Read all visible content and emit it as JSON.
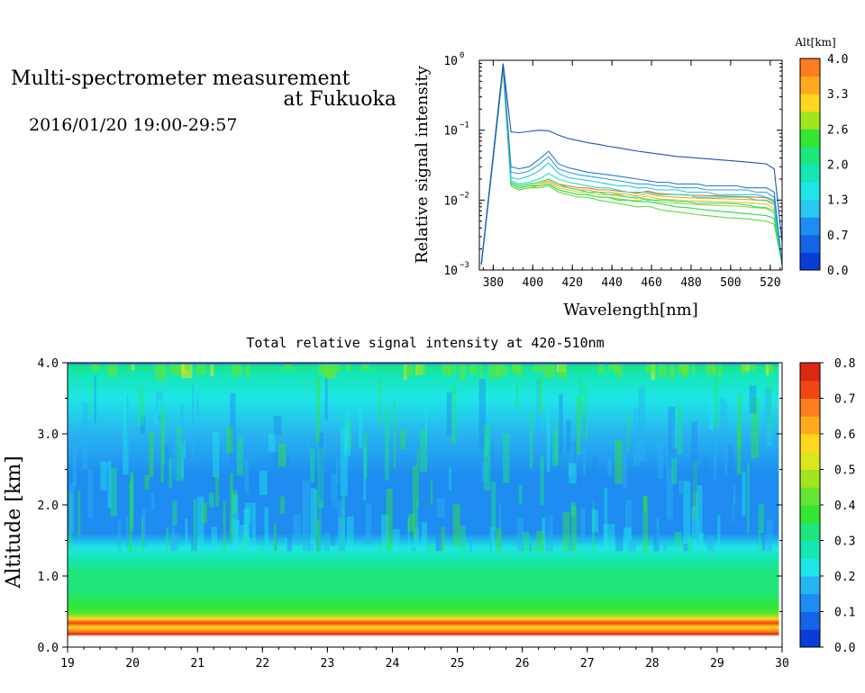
{
  "header": {
    "title_line1": "Multi-spectrometer measurement",
    "title_line2": "at Fukuoka",
    "datetime": "2016/01/20 19:00-29:57"
  },
  "colors": {
    "colorscale": [
      "#0a3cd7",
      "#1464e6",
      "#1e8cf0",
      "#28b4f0",
      "#1ee6e6",
      "#14e6b4",
      "#1ee67d",
      "#32e632",
      "#64e632",
      "#a0e61e",
      "#dce61e",
      "#ffd71e",
      "#ffaa1e",
      "#ff7d1e",
      "#f04614",
      "#dc2810"
    ],
    "spectrum_lines": [
      "#2050b8",
      "#2a78d0",
      "#30a0e0",
      "#28c8e0",
      "#1ee0c8",
      "#20e090",
      "#28d850",
      "#60d838",
      "#a8d820",
      "#e0c820",
      "#f8a020",
      "#f07020"
    ]
  },
  "chart_data": [
    {
      "type": "line",
      "subplot": "spectrum",
      "xlabel": "Wavelength[nm]",
      "ylabel": "Relative signal intensity",
      "xlim": [
        373,
        526
      ],
      "ylim": [
        0.001,
        1
      ],
      "yscale": "log",
      "xticks": [
        380,
        400,
        420,
        440,
        460,
        480,
        500,
        520
      ],
      "yticks": [
        {
          "label": "10",
          "exp": "0",
          "value": 1
        },
        {
          "label": "10",
          "exp": "−1",
          "value": 0.1
        },
        {
          "label": "10",
          "exp": "−2",
          "value": 0.01
        },
        {
          "label": "10",
          "exp": "−3",
          "value": 0.001
        }
      ],
      "x": [
        374,
        385,
        389,
        393,
        398,
        403,
        408,
        413,
        418,
        423,
        428,
        433,
        438,
        443,
        448,
        453,
        458,
        463,
        468,
        473,
        478,
        483,
        488,
        493,
        498,
        503,
        508,
        513,
        518,
        522,
        526
      ],
      "series": [
        {
          "values": [
            0.0012,
            0.9,
            0.095,
            0.092,
            0.096,
            0.1,
            0.098,
            0.085,
            0.076,
            0.071,
            0.066,
            0.063,
            0.059,
            0.056,
            0.053,
            0.05,
            0.048,
            0.046,
            0.044,
            0.042,
            0.041,
            0.04,
            0.039,
            0.038,
            0.037,
            0.036,
            0.035,
            0.034,
            0.033,
            0.028,
            0.0025
          ]
        },
        {
          "values": [
            0.0012,
            0.88,
            0.03,
            0.028,
            0.03,
            0.038,
            0.05,
            0.033,
            0.029,
            0.027,
            0.025,
            0.024,
            0.023,
            0.022,
            0.021,
            0.02,
            0.019,
            0.018,
            0.018,
            0.017,
            0.017,
            0.017,
            0.016,
            0.016,
            0.016,
            0.016,
            0.015,
            0.015,
            0.015,
            0.013,
            0.0012
          ]
        },
        {
          "values": [
            0.0012,
            0.86,
            0.025,
            0.024,
            0.026,
            0.032,
            0.042,
            0.028,
            0.025,
            0.023,
            0.022,
            0.021,
            0.02,
            0.019,
            0.018,
            0.017,
            0.017,
            0.016,
            0.016,
            0.015,
            0.015,
            0.015,
            0.014,
            0.014,
            0.014,
            0.014,
            0.014,
            0.013,
            0.013,
            0.011,
            0.0012
          ]
        },
        {
          "values": [
            0.0012,
            0.84,
            0.021,
            0.02,
            0.022,
            0.026,
            0.034,
            0.024,
            0.021,
            0.02,
            0.019,
            0.018,
            0.017,
            0.016,
            0.016,
            0.015,
            0.015,
            0.014,
            0.014,
            0.014,
            0.013,
            0.013,
            0.013,
            0.012,
            0.012,
            0.012,
            0.012,
            0.012,
            0.011,
            0.01,
            0.0012
          ]
        },
        {
          "values": [
            0.0012,
            0.82,
            0.019,
            0.017,
            0.018,
            0.02,
            0.024,
            0.02,
            0.018,
            0.017,
            0.016,
            0.015,
            0.015,
            0.014,
            0.013,
            0.013,
            0.013,
            0.012,
            0.012,
            0.012,
            0.012,
            0.011,
            0.011,
            0.011,
            0.011,
            0.011,
            0.011,
            0.01,
            0.01,
            0.009,
            0.0012
          ]
        },
        {
          "values": [
            0.0012,
            0.8,
            0.018,
            0.016,
            0.017,
            0.018,
            0.02,
            0.017,
            0.015,
            0.014,
            0.013,
            0.013,
            0.012,
            0.012,
            0.011,
            0.011,
            0.01,
            0.01,
            0.01,
            0.0095,
            0.0095,
            0.009,
            0.009,
            0.009,
            0.009,
            0.0088,
            0.0085,
            0.008,
            0.0078,
            0.007,
            0.0012
          ]
        },
        {
          "values": [
            0.0012,
            0.78,
            0.017,
            0.015,
            0.016,
            0.016,
            0.017,
            0.014,
            0.013,
            0.012,
            0.012,
            0.011,
            0.011,
            0.01,
            0.01,
            0.0095,
            0.0095,
            0.009,
            0.0085,
            0.008,
            0.0078,
            0.0075,
            0.0072,
            0.007,
            0.0068,
            0.0066,
            0.0064,
            0.0062,
            0.006,
            0.0055,
            0.0012
          ]
        },
        {
          "values": [
            0.0012,
            0.76,
            0.016,
            0.014,
            0.015,
            0.015,
            0.016,
            0.013,
            0.012,
            0.011,
            0.011,
            0.01,
            0.0095,
            0.009,
            0.0085,
            0.008,
            0.0082,
            0.0075,
            0.007,
            0.0068,
            0.0065,
            0.0062,
            0.006,
            0.0058,
            0.0056,
            0.0055,
            0.0054,
            0.0052,
            0.005,
            0.0045,
            0.0012
          ]
        },
        {
          "values": [
            0.0012,
            0.75,
            0.016,
            0.014,
            0.015,
            0.016,
            0.017,
            0.014,
            0.013,
            0.012,
            0.012,
            0.011,
            0.011,
            0.0105,
            0.01,
            0.0098,
            0.0105,
            0.0095,
            0.0092,
            0.009,
            0.0088,
            0.0086,
            0.0085,
            0.0084,
            0.0083,
            0.0082,
            0.008,
            0.0078,
            0.0075,
            0.0065,
            0.0012
          ]
        },
        {
          "values": [
            0.0012,
            0.74,
            0.017,
            0.015,
            0.016,
            0.017,
            0.018,
            0.015,
            0.014,
            0.013,
            0.013,
            0.012,
            0.012,
            0.0115,
            0.011,
            0.0105,
            0.0115,
            0.0105,
            0.0102,
            0.01,
            0.0098,
            0.0097,
            0.0096,
            0.0095,
            0.0094,
            0.0093,
            0.0092,
            0.009,
            0.0088,
            0.0075,
            0.0012
          ]
        },
        {
          "values": [
            0.0012,
            0.73,
            0.017,
            0.015,
            0.016,
            0.017,
            0.019,
            0.016,
            0.015,
            0.014,
            0.014,
            0.013,
            0.013,
            0.0125,
            0.012,
            0.0115,
            0.0125,
            0.0115,
            0.0112,
            0.011,
            0.0108,
            0.0107,
            0.0106,
            0.0105,
            0.0104,
            0.0103,
            0.0102,
            0.01,
            0.0098,
            0.0085,
            0.0012
          ]
        },
        {
          "values": [
            0.0012,
            0.72,
            0.018,
            0.016,
            0.017,
            0.018,
            0.02,
            0.017,
            0.016,
            0.015,
            0.015,
            0.014,
            0.014,
            0.0135,
            0.013,
            0.0125,
            0.0135,
            0.0125,
            0.0122,
            0.012,
            0.0118,
            0.0117,
            0.0116,
            0.0115,
            0.0114,
            0.0113,
            0.0112,
            0.011,
            0.0108,
            0.0095,
            0.0012
          ]
        }
      ],
      "colorbar": {
        "title": "Alt[km]",
        "range": [
          0.0,
          4.0
        ],
        "ticks": [
          "0.0",
          "0.7",
          "1.3",
          "2.0",
          "2.6",
          "3.3",
          "4.0"
        ]
      }
    },
    {
      "type": "heatmap",
      "subplot": "time-altitude",
      "title": "Total relative signal intensity at 420-510nm",
      "ylabel": "Altitude [km]",
      "xlim": [
        19,
        30
      ],
      "ylim": [
        0,
        4
      ],
      "data_x_end": 29.95,
      "xticks": [
        "19",
        "20",
        "21",
        "22",
        "23",
        "24",
        "25",
        "26",
        "27",
        "28",
        "29",
        "30"
      ],
      "yticks": [
        "0.0",
        "1.0",
        "2.0",
        "3.0",
        "4.0"
      ],
      "profile": [
        {
          "alt": 0.0,
          "value": null
        },
        {
          "alt": 0.15,
          "value": null
        },
        {
          "alt": 0.18,
          "value": 0.78
        },
        {
          "alt": 0.22,
          "value": 0.7
        },
        {
          "alt": 0.28,
          "value": 0.6
        },
        {
          "alt": 0.34,
          "value": 0.72
        },
        {
          "alt": 0.4,
          "value": 0.55
        },
        {
          "alt": 0.46,
          "value": 0.42
        },
        {
          "alt": 0.55,
          "value": 0.36
        },
        {
          "alt": 0.8,
          "value": 0.32
        },
        {
          "alt": 1.05,
          "value": 0.31
        },
        {
          "alt": 1.25,
          "value": 0.27
        },
        {
          "alt": 1.4,
          "value": 0.2
        },
        {
          "alt": 1.6,
          "value": 0.14
        },
        {
          "alt": 2.0,
          "value": 0.13
        },
        {
          "alt": 2.4,
          "value": 0.15
        },
        {
          "alt": 3.0,
          "value": 0.18
        },
        {
          "alt": 3.5,
          "value": 0.2
        },
        {
          "alt": 3.85,
          "value": 0.25
        },
        {
          "alt": 3.95,
          "value": 0.33
        },
        {
          "alt": 4.0,
          "value": 0.12
        }
      ],
      "colorbar": {
        "range": [
          0.0,
          0.8
        ],
        "ticks": [
          "0.0",
          "0.1",
          "0.2",
          "0.3",
          "0.4",
          "0.5",
          "0.6",
          "0.7",
          "0.8"
        ]
      }
    }
  ]
}
